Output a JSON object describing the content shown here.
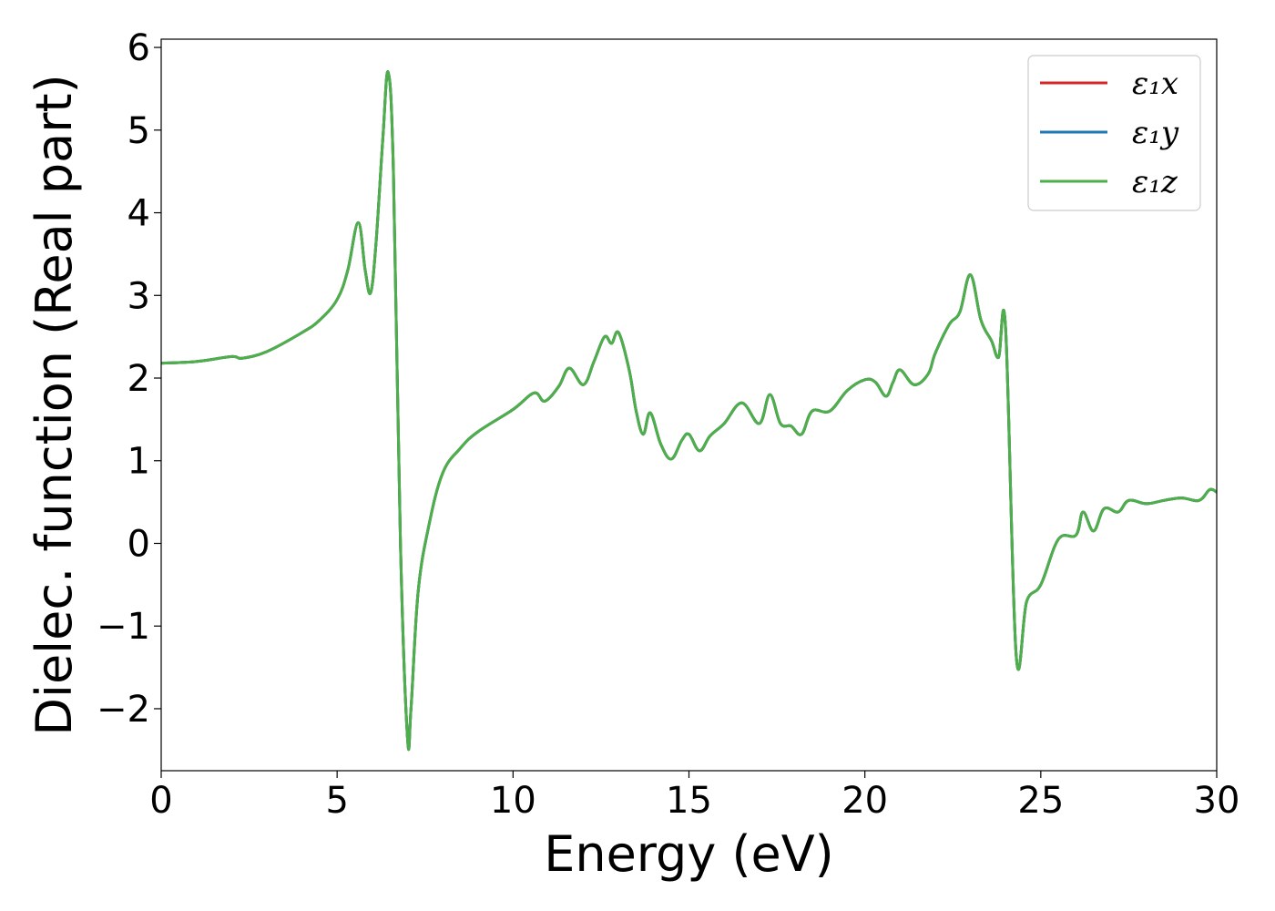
{
  "chart_data": {
    "type": "line",
    "xlabel": "Energy (eV)",
    "ylabel": "Dielec. function (Real part)",
    "xlim": [
      0,
      30
    ],
    "ylim": [
      -2.75,
      6.1
    ],
    "xticks": [
      0,
      5,
      10,
      15,
      20,
      25,
      30
    ],
    "xtick_labels": [
      "0",
      "5",
      "10",
      "15",
      "20",
      "25",
      "30"
    ],
    "yticks": [
      -2,
      -1,
      0,
      1,
      2,
      3,
      4,
      5,
      6
    ],
    "ytick_labels": [
      "−2",
      "−1",
      "0",
      "1",
      "2",
      "3",
      "4",
      "5",
      "6"
    ],
    "grid": false,
    "legend_position": "top-right",
    "colors": {
      "x": "#d62728",
      "y": "#1f77b4",
      "z": "#4daf4a"
    },
    "series": [
      {
        "name": "ε₁x",
        "color": "#d62728",
        "x": [
          0,
          1,
          2,
          2.3,
          3,
          4,
          4.5,
          5,
          5.3,
          5.6,
          5.8,
          5.95,
          6.1,
          6.3,
          6.45,
          6.6,
          6.8,
          7.0,
          7.1,
          7.3,
          7.6,
          8.0,
          8.5,
          9.0,
          10.0,
          10.6,
          10.9,
          11.3,
          11.6,
          12.0,
          12.3,
          12.6,
          12.8,
          13.0,
          13.3,
          13.5,
          13.7,
          13.9,
          14.2,
          14.5,
          14.8,
          15.0,
          15.3,
          15.6,
          16.0,
          16.5,
          17.0,
          17.3,
          17.6,
          17.9,
          18.2,
          18.5,
          19.0,
          19.5,
          20.0,
          20.3,
          20.6,
          20.8,
          21.0,
          21.4,
          21.8,
          22.0,
          22.4,
          22.7,
          23.0,
          23.3,
          23.6,
          23.8,
          24.0,
          24.3,
          24.6,
          25.0,
          25.5,
          26.0,
          26.2,
          26.5,
          26.8,
          27.2,
          27.5,
          28.0,
          28.5,
          29.0,
          29.5,
          29.8,
          30.0
        ],
        "values": [
          2.18,
          2.2,
          2.26,
          2.24,
          2.32,
          2.55,
          2.7,
          2.95,
          3.3,
          3.88,
          3.3,
          3.03,
          3.6,
          4.9,
          5.7,
          4.5,
          0.0,
          -2.35,
          -2.0,
          -0.6,
          0.2,
          0.85,
          1.15,
          1.35,
          1.62,
          1.82,
          1.72,
          1.9,
          2.12,
          1.92,
          2.2,
          2.5,
          2.42,
          2.55,
          2.1,
          1.6,
          1.32,
          1.58,
          1.2,
          1.02,
          1.25,
          1.32,
          1.12,
          1.3,
          1.45,
          1.7,
          1.45,
          1.8,
          1.45,
          1.42,
          1.32,
          1.6,
          1.6,
          1.85,
          1.98,
          1.95,
          1.78,
          1.95,
          2.1,
          1.92,
          2.05,
          2.3,
          2.65,
          2.8,
          3.25,
          2.7,
          2.45,
          2.25,
          2.6,
          -1.35,
          -0.7,
          -0.5,
          0.05,
          0.1,
          0.38,
          0.15,
          0.42,
          0.38,
          0.52,
          0.48,
          0.52,
          0.55,
          0.52,
          0.65,
          0.62
        ]
      },
      {
        "name": "ε₁y",
        "color": "#1f77b4",
        "x": [
          0,
          1,
          2,
          2.3,
          3,
          4,
          4.5,
          5,
          5.3,
          5.6,
          5.8,
          5.95,
          6.1,
          6.3,
          6.45,
          6.6,
          6.8,
          7.0,
          7.1,
          7.3,
          7.6,
          8.0,
          8.5,
          9.0,
          10.0,
          10.6,
          10.9,
          11.3,
          11.6,
          12.0,
          12.3,
          12.6,
          12.8,
          13.0,
          13.3,
          13.5,
          13.7,
          13.9,
          14.2,
          14.5,
          14.8,
          15.0,
          15.3,
          15.6,
          16.0,
          16.5,
          17.0,
          17.3,
          17.6,
          17.9,
          18.2,
          18.5,
          19.0,
          19.5,
          20.0,
          20.3,
          20.6,
          20.8,
          21.0,
          21.4,
          21.8,
          22.0,
          22.4,
          22.7,
          23.0,
          23.3,
          23.6,
          23.8,
          24.0,
          24.3,
          24.6,
          25.0,
          25.5,
          26.0,
          26.2,
          26.5,
          26.8,
          27.2,
          27.5,
          28.0,
          28.5,
          29.0,
          29.5,
          29.8,
          30.0
        ],
        "values": [
          2.18,
          2.2,
          2.26,
          2.24,
          2.32,
          2.55,
          2.7,
          2.95,
          3.3,
          3.88,
          3.3,
          3.03,
          3.6,
          4.9,
          5.7,
          4.5,
          0.0,
          -2.35,
          -2.0,
          -0.6,
          0.2,
          0.85,
          1.15,
          1.35,
          1.62,
          1.82,
          1.72,
          1.9,
          2.12,
          1.92,
          2.2,
          2.5,
          2.42,
          2.55,
          2.1,
          1.6,
          1.32,
          1.58,
          1.2,
          1.02,
          1.25,
          1.32,
          1.12,
          1.3,
          1.45,
          1.7,
          1.45,
          1.8,
          1.45,
          1.42,
          1.32,
          1.6,
          1.6,
          1.85,
          1.98,
          1.95,
          1.78,
          1.95,
          2.1,
          1.92,
          2.05,
          2.3,
          2.65,
          2.8,
          3.25,
          2.7,
          2.45,
          2.25,
          2.6,
          -1.35,
          -0.7,
          -0.5,
          0.05,
          0.1,
          0.38,
          0.15,
          0.42,
          0.38,
          0.52,
          0.48,
          0.52,
          0.55,
          0.52,
          0.65,
          0.62
        ]
      },
      {
        "name": "ε₁z",
        "color": "#4daf4a",
        "x": [
          0,
          1,
          2,
          2.3,
          3,
          4,
          4.5,
          5,
          5.3,
          5.6,
          5.8,
          5.95,
          6.1,
          6.3,
          6.45,
          6.6,
          6.8,
          7.0,
          7.1,
          7.3,
          7.6,
          8.0,
          8.5,
          9.0,
          10.0,
          10.6,
          10.9,
          11.3,
          11.6,
          12.0,
          12.3,
          12.6,
          12.8,
          13.0,
          13.3,
          13.5,
          13.7,
          13.9,
          14.2,
          14.5,
          14.8,
          15.0,
          15.3,
          15.6,
          16.0,
          16.5,
          17.0,
          17.3,
          17.6,
          17.9,
          18.2,
          18.5,
          19.0,
          19.5,
          20.0,
          20.3,
          20.6,
          20.8,
          21.0,
          21.4,
          21.8,
          22.0,
          22.4,
          22.7,
          23.0,
          23.3,
          23.6,
          23.8,
          24.0,
          24.3,
          24.6,
          25.0,
          25.5,
          26.0,
          26.2,
          26.5,
          26.8,
          27.2,
          27.5,
          28.0,
          28.5,
          29.0,
          29.5,
          29.8,
          30.0
        ],
        "values": [
          2.18,
          2.2,
          2.26,
          2.24,
          2.32,
          2.55,
          2.7,
          2.95,
          3.3,
          3.88,
          3.3,
          3.03,
          3.6,
          4.9,
          5.7,
          4.5,
          0.0,
          -2.35,
          -2.0,
          -0.6,
          0.2,
          0.85,
          1.15,
          1.35,
          1.62,
          1.82,
          1.72,
          1.9,
          2.12,
          1.92,
          2.2,
          2.5,
          2.42,
          2.55,
          2.1,
          1.6,
          1.32,
          1.58,
          1.2,
          1.02,
          1.25,
          1.32,
          1.12,
          1.3,
          1.45,
          1.7,
          1.45,
          1.8,
          1.45,
          1.42,
          1.32,
          1.6,
          1.6,
          1.85,
          1.98,
          1.95,
          1.78,
          1.95,
          2.1,
          1.92,
          2.05,
          2.3,
          2.65,
          2.8,
          3.25,
          2.7,
          2.45,
          2.25,
          2.6,
          -1.35,
          -0.7,
          -0.5,
          0.05,
          0.1,
          0.38,
          0.15,
          0.42,
          0.38,
          0.52,
          0.48,
          0.52,
          0.55,
          0.52,
          0.65,
          0.62
        ]
      }
    ]
  }
}
